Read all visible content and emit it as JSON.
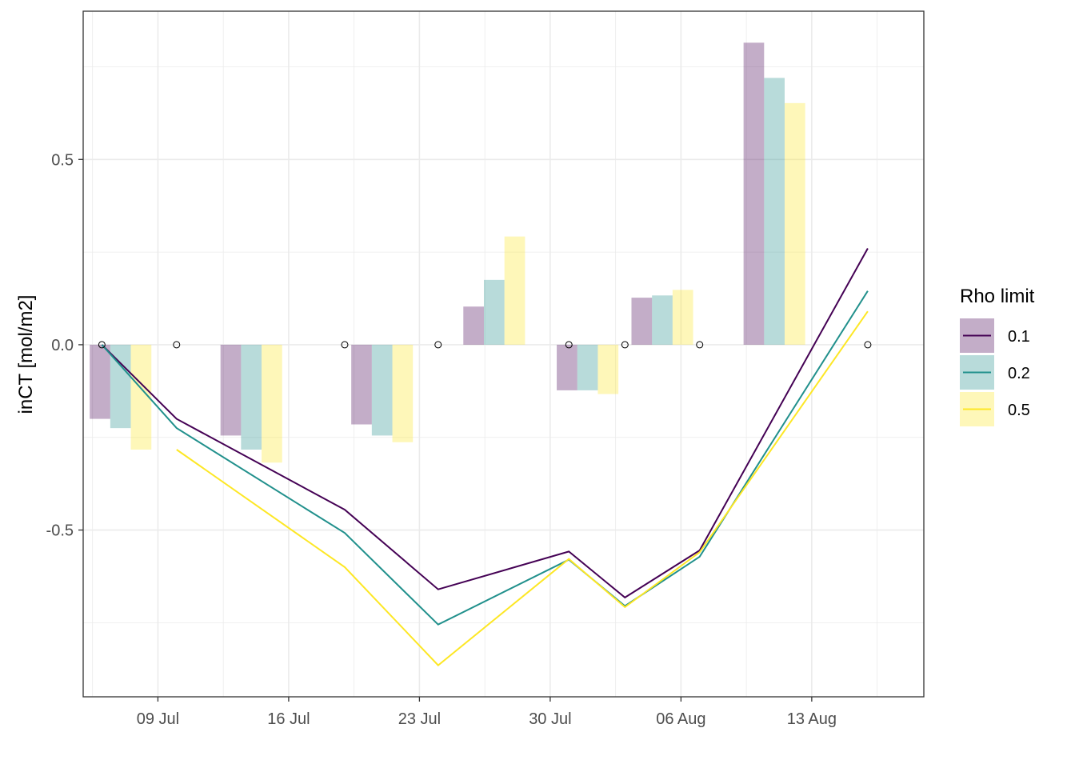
{
  "chart_data": {
    "type": "bar",
    "xlabel": "",
    "ylabel": "inCT [mol/m2]",
    "x_axis_type": "date",
    "xlim": [
      "2020-07-05",
      "2020-08-19"
    ],
    "ylim": [
      -0.95,
      0.9
    ],
    "x_tick_labels": [
      {
        "date": "2020-07-09",
        "label": "09 Jul"
      },
      {
        "date": "2020-07-16",
        "label": "16 Jul"
      },
      {
        "date": "2020-07-23",
        "label": "23 Jul"
      },
      {
        "date": "2020-07-30",
        "label": "30 Jul"
      },
      {
        "date": "2020-08-06",
        "label": "06 Aug"
      },
      {
        "date": "2020-08-13",
        "label": "13 Aug"
      }
    ],
    "y_ticks": [
      -0.5,
      0.0,
      0.5
    ],
    "y_tick_labels": [
      "-0.5",
      "0.0",
      "0.5"
    ],
    "grid": true,
    "legend": {
      "title": "Rho limit",
      "position": "right",
      "entries": [
        "0.1",
        "0.2",
        "0.5"
      ]
    },
    "series": [
      {
        "name": "0.1",
        "color": "#440154",
        "bars": [
          {
            "date": "2020-07-07",
            "value": -0.2
          },
          {
            "date": "2020-07-14",
            "value": -0.245
          },
          {
            "date": "2020-07-21",
            "value": -0.215
          },
          {
            "date": "2020-07-27",
            "value": 0.103
          },
          {
            "date": "2020-08-01",
            "value": -0.123
          },
          {
            "date": "2020-08-05",
            "value": 0.127
          },
          {
            "date": "2020-08-11",
            "value": 0.815
          }
        ],
        "line": [
          {
            "date": "2020-07-06",
            "value": 0.0
          },
          {
            "date": "2020-07-10",
            "value": -0.2
          },
          {
            "date": "2020-07-19",
            "value": -0.445
          },
          {
            "date": "2020-07-24",
            "value": -0.66
          },
          {
            "date": "2020-07-31",
            "value": -0.558
          },
          {
            "date": "2020-08-03",
            "value": -0.682
          },
          {
            "date": "2020-08-07",
            "value": -0.555
          },
          {
            "date": "2020-08-16",
            "value": 0.26
          }
        ]
      },
      {
        "name": "0.2",
        "color": "#21908C",
        "bars": [
          {
            "date": "2020-07-07",
            "value": -0.225
          },
          {
            "date": "2020-07-14",
            "value": -0.283
          },
          {
            "date": "2020-07-21",
            "value": -0.245
          },
          {
            "date": "2020-07-27",
            "value": 0.175
          },
          {
            "date": "2020-08-01",
            "value": -0.123
          },
          {
            "date": "2020-08-05",
            "value": 0.133
          },
          {
            "date": "2020-08-11",
            "value": 0.72
          }
        ],
        "line": [
          {
            "date": "2020-07-06",
            "value": 0.0
          },
          {
            "date": "2020-07-10",
            "value": -0.225
          },
          {
            "date": "2020-07-19",
            "value": -0.508
          },
          {
            "date": "2020-07-24",
            "value": -0.755
          },
          {
            "date": "2020-07-31",
            "value": -0.58
          },
          {
            "date": "2020-08-03",
            "value": -0.705
          },
          {
            "date": "2020-08-07",
            "value": -0.572
          },
          {
            "date": "2020-08-16",
            "value": 0.145
          }
        ]
      },
      {
        "name": "0.5",
        "color": "#FDE725",
        "bars": [
          {
            "date": "2020-07-07",
            "value": -0.283
          },
          {
            "date": "2020-07-14",
            "value": -0.318
          },
          {
            "date": "2020-07-21",
            "value": -0.263
          },
          {
            "date": "2020-07-27",
            "value": 0.292
          },
          {
            "date": "2020-08-01",
            "value": -0.133
          },
          {
            "date": "2020-08-05",
            "value": 0.148
          },
          {
            "date": "2020-08-11",
            "value": 0.652
          }
        ],
        "line": [
          {
            "date": "2020-07-10",
            "value": -0.283
          },
          {
            "date": "2020-07-19",
            "value": -0.6
          },
          {
            "date": "2020-07-24",
            "value": -0.865
          },
          {
            "date": "2020-07-31",
            "value": -0.578
          },
          {
            "date": "2020-08-03",
            "value": -0.708
          },
          {
            "date": "2020-08-07",
            "value": -0.56
          },
          {
            "date": "2020-08-16",
            "value": 0.09
          }
        ]
      }
    ],
    "points": [
      {
        "date": "2020-07-06",
        "value": 0.0
      },
      {
        "date": "2020-07-10",
        "value": 0.0
      },
      {
        "date": "2020-07-19",
        "value": 0.0
      },
      {
        "date": "2020-07-24",
        "value": 0.0
      },
      {
        "date": "2020-07-31",
        "value": 0.0
      },
      {
        "date": "2020-08-03",
        "value": 0.0
      },
      {
        "date": "2020-08-07",
        "value": 0.0
      },
      {
        "date": "2020-08-16",
        "value": 0.0
      }
    ]
  }
}
